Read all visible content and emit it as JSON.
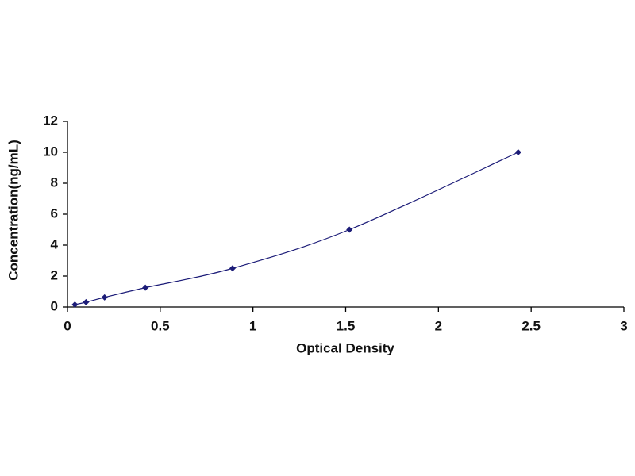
{
  "chart_data": {
    "type": "scatter",
    "xlabel": "Optical Density",
    "ylabel": "Concentration(ng/mL)",
    "x": [
      0.04,
      0.1,
      0.2,
      0.42,
      0.89,
      1.52,
      2.43
    ],
    "values": [
      0.156,
      0.312,
      0.625,
      1.25,
      2.5,
      5,
      10
    ],
    "color": "#1c1c78",
    "line": true,
    "xlim": [
      0,
      3
    ],
    "xticks": [
      0,
      0.5,
      1,
      1.5,
      2,
      2.5,
      3
    ],
    "ylim": [
      0,
      12
    ],
    "yticks": [
      0,
      2,
      4,
      6,
      8,
      10,
      12
    ],
    "grid": false
  }
}
